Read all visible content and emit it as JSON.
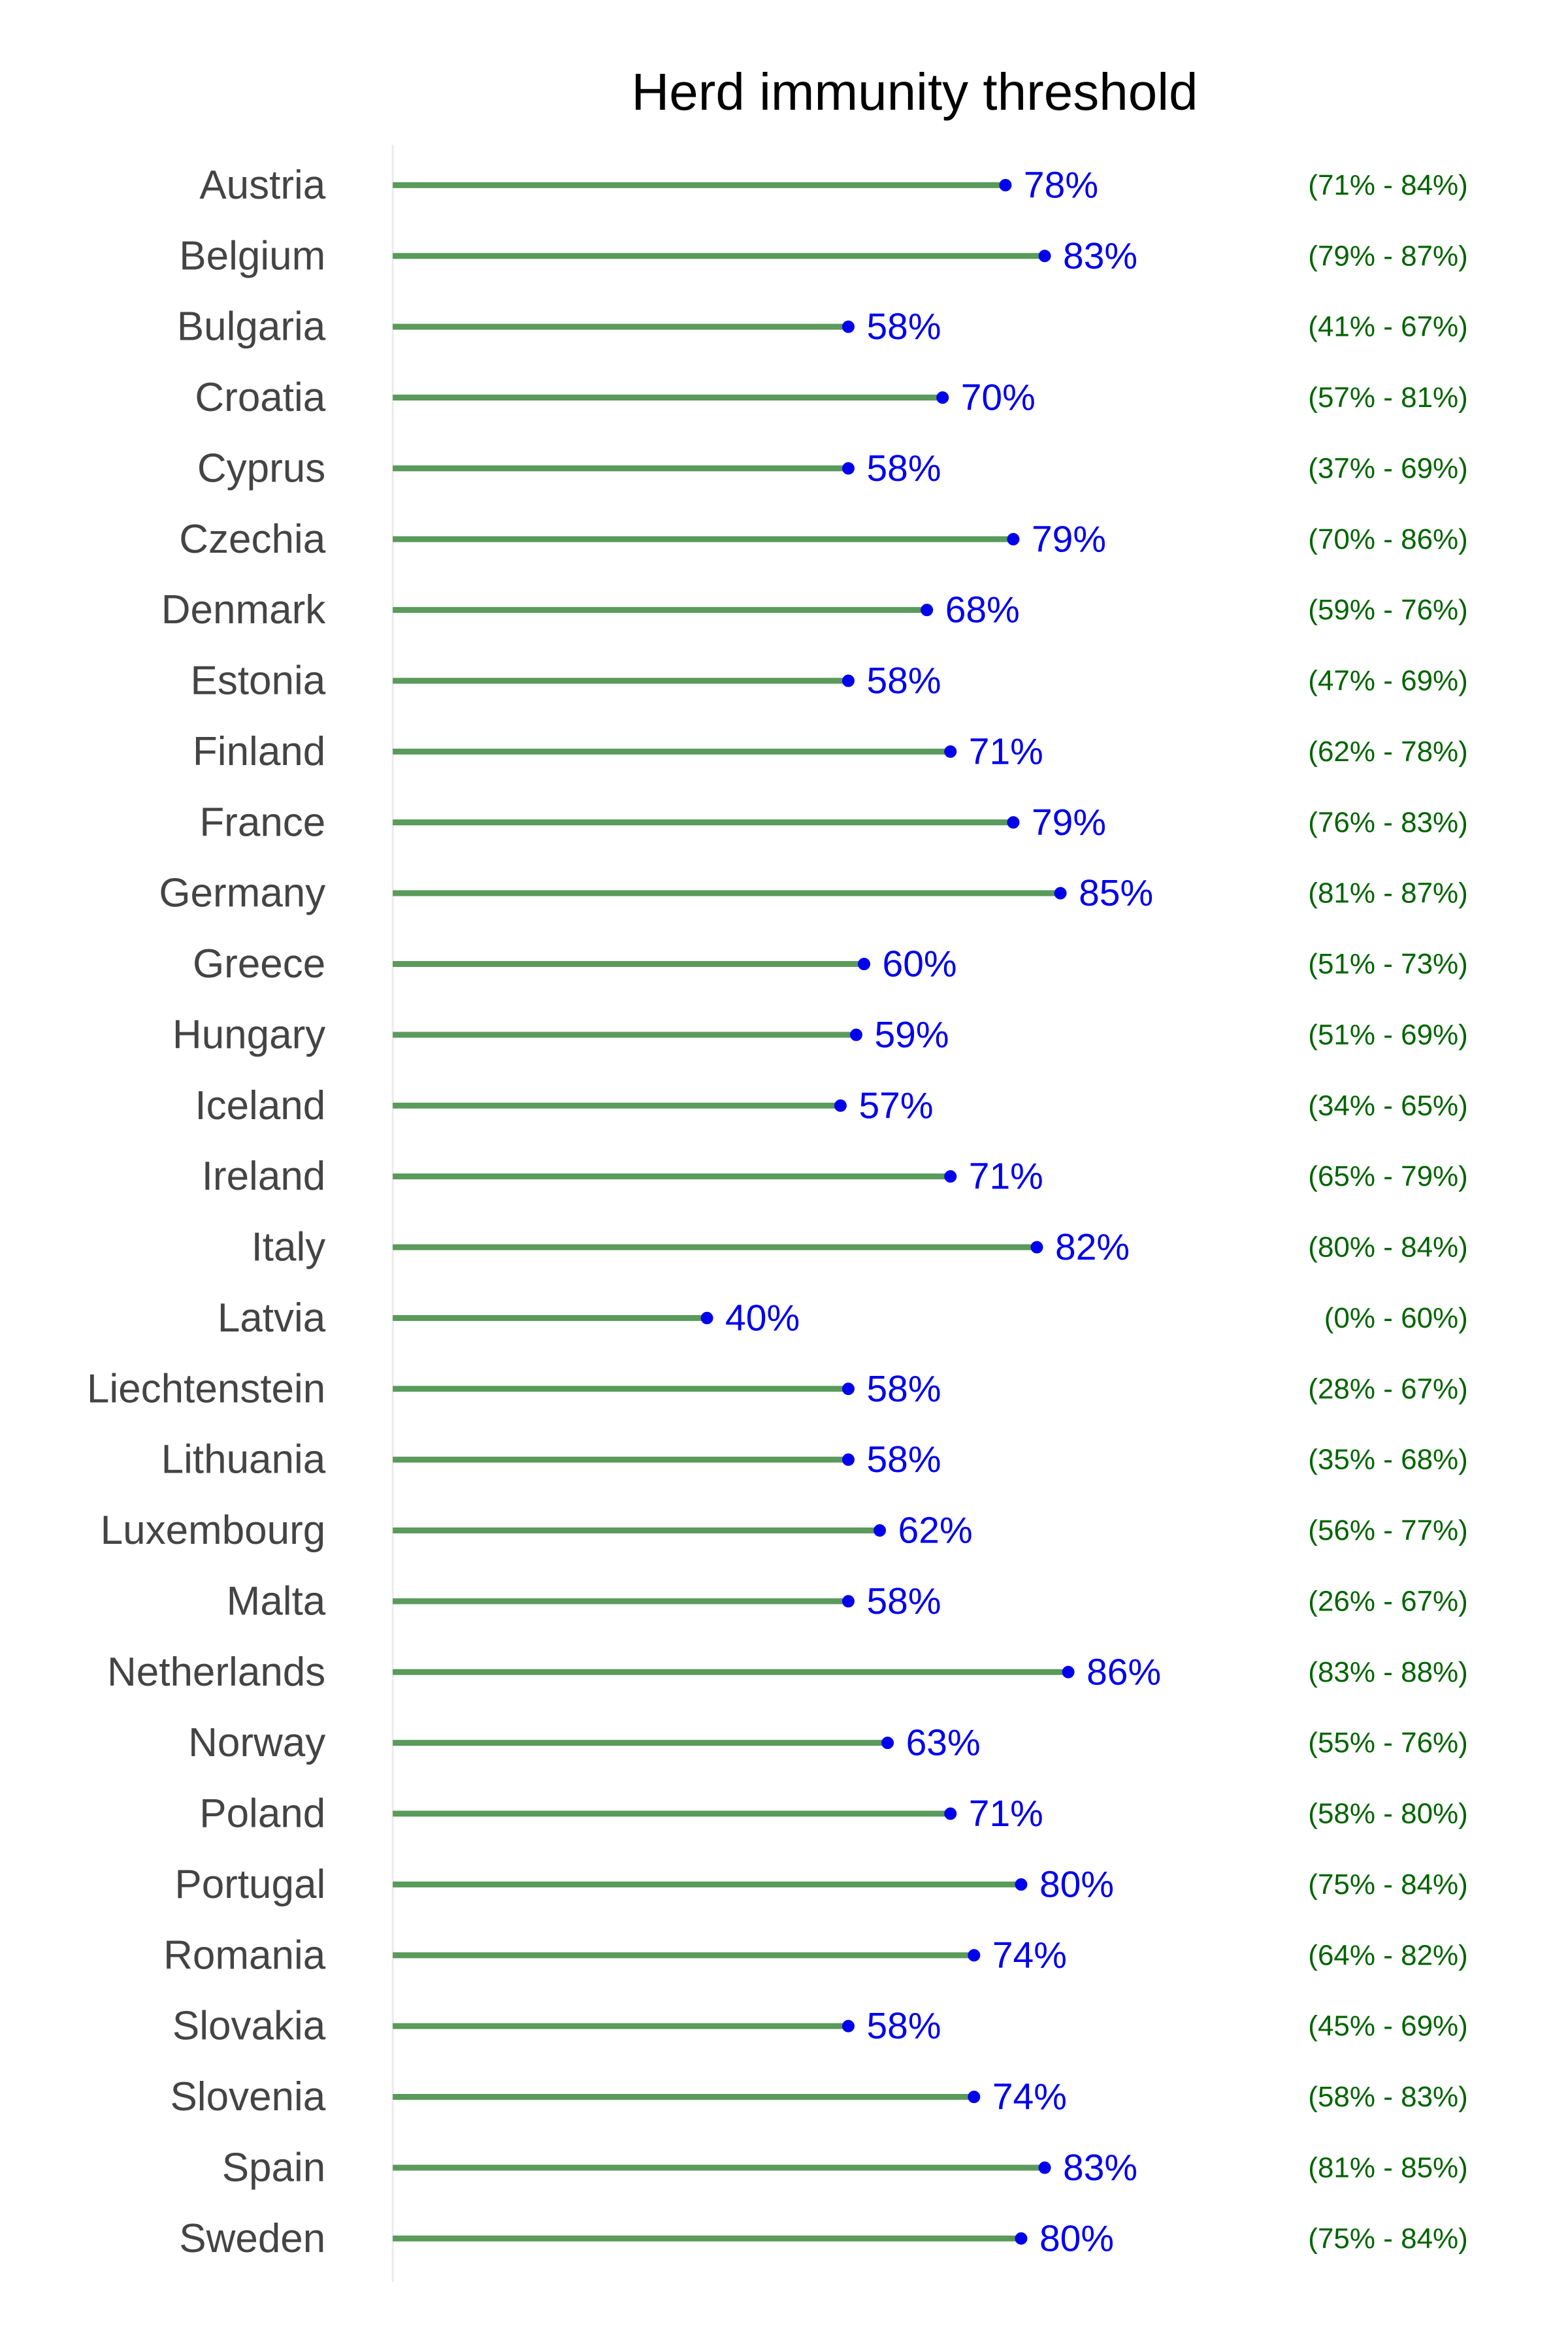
{
  "chart_data": {
    "type": "bar",
    "title": "Herd immunity threshold",
    "xlabel": "",
    "ylabel": "",
    "xlim": [
      0,
      100
    ],
    "grid": false,
    "legend": "none",
    "colors": {
      "stem": "#5a9a5a",
      "dot": "#0000ee",
      "value_text": "#0000ee",
      "ci_text": "#006400",
      "category_text": "#444444",
      "axis_line": "#ebebeb"
    },
    "categories": [
      "Austria",
      "Belgium",
      "Bulgaria",
      "Croatia",
      "Cyprus",
      "Czechia",
      "Denmark",
      "Estonia",
      "Finland",
      "France",
      "Germany",
      "Greece",
      "Hungary",
      "Iceland",
      "Ireland",
      "Italy",
      "Latvia",
      "Liechtenstein",
      "Lithuania",
      "Luxembourg",
      "Malta",
      "Netherlands",
      "Norway",
      "Poland",
      "Portugal",
      "Romania",
      "Slovakia",
      "Slovenia",
      "Spain",
      "Sweden"
    ],
    "values": [
      78,
      83,
      58,
      70,
      58,
      79,
      68,
      58,
      71,
      79,
      85,
      60,
      59,
      57,
      71,
      82,
      40,
      58,
      58,
      62,
      58,
      86,
      63,
      71,
      80,
      74,
      58,
      74,
      83,
      80
    ],
    "value_labels": [
      "78%",
      "83%",
      "58%",
      "70%",
      "58%",
      "79%",
      "68%",
      "58%",
      "71%",
      "79%",
      "85%",
      "60%",
      "59%",
      "57%",
      "71%",
      "82%",
      "40%",
      "58%",
      "58%",
      "62%",
      "58%",
      "86%",
      "63%",
      "71%",
      "80%",
      "74%",
      "58%",
      "74%",
      "83%",
      "80%"
    ],
    "ci_labels": [
      "(71% - 84%)",
      "(79% - 87%)",
      "(41% - 67%)",
      "(57% - 81%)",
      "(37% - 69%)",
      "(70% - 86%)",
      "(59% - 76%)",
      "(47% - 69%)",
      "(62% - 78%)",
      "(76% - 83%)",
      "(81% - 87%)",
      "(51% - 73%)",
      "(51% - 69%)",
      "(34% - 65%)",
      "(65% - 79%)",
      "(80% - 84%)",
      "(0% - 60%)",
      "(28% - 67%)",
      "(35% - 68%)",
      "(56% - 77%)",
      "(26% - 67%)",
      "(83% - 88%)",
      "(55% - 76%)",
      "(58% - 80%)",
      "(75% - 84%)",
      "(64% - 82%)",
      "(45% - 69%)",
      "(58% - 83%)",
      "(81% - 85%)",
      "(75% - 84%)"
    ]
  }
}
